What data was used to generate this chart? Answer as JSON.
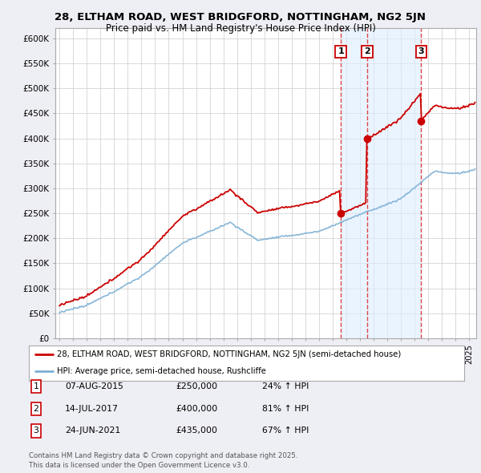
{
  "title1": "28, ELTHAM ROAD, WEST BRIDGFORD, NOTTINGHAM, NG2 5JN",
  "title2": "Price paid vs. HM Land Registry's House Price Index (HPI)",
  "background_color": "#eeeef5",
  "plot_bg": "#ffffff",
  "ylim": [
    0,
    620000
  ],
  "yticks": [
    0,
    50000,
    100000,
    150000,
    200000,
    250000,
    300000,
    350000,
    400000,
    450000,
    500000,
    550000,
    600000
  ],
  "ytick_labels": [
    "£0",
    "£50K",
    "£100K",
    "£150K",
    "£200K",
    "£250K",
    "£300K",
    "£350K",
    "£400K",
    "£450K",
    "£500K",
    "£550K",
    "£600K"
  ],
  "xlim_start": 1994.7,
  "xlim_end": 2025.5,
  "transaction_dates": [
    2015.59,
    2017.53,
    2021.48
  ],
  "transaction_prices": [
    250000,
    400000,
    435000
  ],
  "transaction_labels": [
    "1",
    "2",
    "3"
  ],
  "red_line_color": "#cc0000",
  "blue_line_color": "#7bafd4",
  "shade_color": "#ddeeff",
  "grid_color": "#cccccc",
  "vline_color": "#dd4444",
  "legend_label1": "28, ELTHAM ROAD, WEST BRIDGFORD, NOTTINGHAM, NG2 5JN (semi-detached house)",
  "legend_label2": "HPI: Average price, semi-detached house, Rushcliffe",
  "table_data": [
    [
      "1",
      "07-AUG-2015",
      "£250,000",
      "24% ↑ HPI"
    ],
    [
      "2",
      "14-JUL-2017",
      "£400,000",
      "81% ↑ HPI"
    ],
    [
      "3",
      "24-JUN-2021",
      "£435,000",
      "67% ↑ HPI"
    ]
  ],
  "footer": "Contains HM Land Registry data © Crown copyright and database right 2025.\nThis data is licensed under the Open Government Licence v3.0."
}
